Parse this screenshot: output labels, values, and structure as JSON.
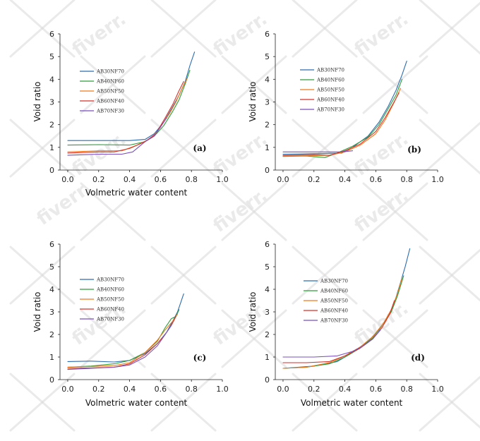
{
  "watermark": {
    "text": "fiverr."
  },
  "colors": {
    "AB30NF70": "#2b6cb0",
    "AB40NF60": "#2e9e3a",
    "AB50NF50": "#f07a1a",
    "AB60NF40": "#d6322b",
    "AB70NF30": "#7b4fbf"
  },
  "chart_data": [
    {
      "type": "line",
      "panel_label": "(a)",
      "xlabel": "Volmetric water content",
      "ylabel": "Void ratio",
      "xlim": [
        -0.05,
        1.0
      ],
      "ylim": [
        0,
        6
      ],
      "xticks": [
        "0.0",
        "0.2",
        "0.4",
        "0.6",
        "0.8",
        "1.0"
      ],
      "yticks": [
        "0",
        "1",
        "2",
        "3",
        "4",
        "5",
        "6"
      ],
      "legend_position": "top-left",
      "series": [
        {
          "name": "AB30NF70",
          "x": [
            0.0,
            0.2,
            0.4,
            0.5,
            0.56,
            0.62,
            0.68,
            0.72,
            0.76,
            0.79,
            0.82
          ],
          "y": [
            1.3,
            1.3,
            1.3,
            1.35,
            1.6,
            2.1,
            2.8,
            3.3,
            3.9,
            4.6,
            5.2
          ]
        },
        {
          "name": "AB40NF60",
          "x": [
            0.0,
            0.2,
            0.4,
            0.5,
            0.56,
            0.62,
            0.68,
            0.72,
            0.76,
            0.79
          ],
          "y": [
            1.1,
            1.12,
            1.1,
            1.25,
            1.5,
            1.95,
            2.6,
            3.1,
            3.8,
            4.4
          ]
        },
        {
          "name": "AB50NF50",
          "x": [
            0.0,
            0.2,
            0.35,
            0.45,
            0.55,
            0.6,
            0.66,
            0.7,
            0.74,
            0.77
          ],
          "y": [
            0.8,
            0.85,
            0.85,
            1.1,
            1.45,
            1.9,
            2.5,
            3.0,
            3.6,
            4.0
          ]
        },
        {
          "name": "AB60NF40",
          "x": [
            0.0,
            0.2,
            0.3,
            0.4,
            0.5,
            0.57,
            0.63,
            0.68,
            0.72,
            0.75
          ],
          "y": [
            0.75,
            0.8,
            0.8,
            0.95,
            1.25,
            1.6,
            2.3,
            2.9,
            3.5,
            3.9
          ]
        },
        {
          "name": "AB70NF30",
          "x": [
            0.0,
            0.2,
            0.35,
            0.42,
            0.5,
            0.56,
            0.6,
            0.64
          ],
          "y": [
            0.65,
            0.7,
            0.7,
            0.8,
            1.25,
            1.5,
            1.9,
            2.3
          ]
        }
      ]
    },
    {
      "type": "line",
      "panel_label": "(b)",
      "xlabel": "",
      "ylabel": "Void ratio",
      "xlim": [
        -0.05,
        1.0
      ],
      "ylim": [
        0,
        6
      ],
      "xticks": [
        "0.0",
        "0.2",
        "0.4",
        "0.6",
        "0.8",
        "1.0"
      ],
      "yticks": [
        "0",
        "1",
        "2",
        "3",
        "4",
        "5",
        "6"
      ],
      "legend_position": "top-left",
      "series": [
        {
          "name": "AB30NF70",
          "x": [
            0.0,
            0.2,
            0.38,
            0.45,
            0.55,
            0.62,
            0.68,
            0.73,
            0.77,
            0.8
          ],
          "y": [
            0.7,
            0.72,
            0.75,
            1.0,
            1.5,
            2.1,
            2.8,
            3.5,
            4.2,
            4.8
          ]
        },
        {
          "name": "AB40NF60",
          "x": [
            0.0,
            0.15,
            0.27,
            0.35,
            0.45,
            0.55,
            0.62,
            0.68,
            0.73,
            0.77
          ],
          "y": [
            0.6,
            0.62,
            0.55,
            0.75,
            1.05,
            1.45,
            2.0,
            2.7,
            3.3,
            4.0
          ]
        },
        {
          "name": "AB50NF50",
          "x": [
            0.0,
            0.15,
            0.3,
            0.4,
            0.5,
            0.6,
            0.66,
            0.72,
            0.76
          ],
          "y": [
            0.62,
            0.63,
            0.65,
            0.8,
            1.1,
            1.6,
            2.2,
            3.0,
            3.6
          ]
        },
        {
          "name": "AB60NF40",
          "x": [
            0.0,
            0.2,
            0.3,
            0.4,
            0.5,
            0.6,
            0.66,
            0.71,
            0.75
          ],
          "y": [
            0.65,
            0.68,
            0.65,
            0.85,
            1.15,
            1.7,
            2.3,
            2.9,
            3.4
          ]
        },
        {
          "name": "AB70NF30",
          "x": [
            0.0,
            0.2,
            0.38,
            0.45
          ],
          "y": [
            0.8,
            0.8,
            0.8,
            0.85
          ]
        }
      ]
    },
    {
      "type": "line",
      "panel_label": "(c)",
      "xlabel": "Volmetric water content",
      "ylabel": "Void ratio",
      "xlim": [
        -0.05,
        1.0
      ],
      "ylim": [
        0,
        6
      ],
      "xticks": [
        "0.0",
        "0.2",
        "0.4",
        "0.6",
        "0.8",
        "1.0"
      ],
      "yticks": [
        "0",
        "1",
        "2",
        "3",
        "4",
        "5",
        "6"
      ],
      "legend_position": "top-left",
      "series": [
        {
          "name": "AB30NF70",
          "x": [
            0.0,
            0.15,
            0.3,
            0.4,
            0.5,
            0.58,
            0.64,
            0.68,
            0.71,
            0.73,
            0.75
          ],
          "y": [
            0.8,
            0.82,
            0.78,
            0.85,
            1.15,
            1.6,
            2.1,
            2.6,
            3.0,
            3.4,
            3.8
          ]
        },
        {
          "name": "AB40NF60",
          "x": [
            0.0,
            0.15,
            0.3,
            0.4,
            0.5,
            0.58,
            0.63,
            0.67,
            0.7,
            0.72
          ],
          "y": [
            0.55,
            0.6,
            0.7,
            0.85,
            1.2,
            1.7,
            2.3,
            2.7,
            2.8,
            3.1
          ]
        },
        {
          "name": "AB50NF50",
          "x": [
            0.0,
            0.15,
            0.3,
            0.4,
            0.5,
            0.58,
            0.63,
            0.68,
            0.71
          ],
          "y": [
            0.55,
            0.58,
            0.62,
            0.75,
            1.2,
            1.75,
            2.2,
            2.6,
            2.9
          ]
        },
        {
          "name": "AB60NF40",
          "x": [
            0.0,
            0.15,
            0.3,
            0.4,
            0.5,
            0.58,
            0.63,
            0.67,
            0.7
          ],
          "y": [
            0.5,
            0.52,
            0.55,
            0.7,
            1.1,
            1.6,
            2.0,
            2.4,
            2.8
          ]
        },
        {
          "name": "AB70NF30",
          "x": [
            0.0,
            0.15,
            0.3,
            0.4,
            0.5,
            0.58,
            0.63,
            0.67
          ],
          "y": [
            0.45,
            0.5,
            0.55,
            0.65,
            1.0,
            1.5,
            2.0,
            2.4
          ]
        }
      ]
    },
    {
      "type": "line",
      "panel_label": "(d)",
      "xlabel": "Volmetric water content",
      "ylabel": "Void ratio",
      "xlim": [
        -0.05,
        1.0
      ],
      "ylim": [
        0,
        6
      ],
      "xticks": [
        "0.0",
        "0.2",
        "0.4",
        "0.6",
        "0.8",
        "1.0"
      ],
      "yticks": [
        "0",
        "1",
        "2",
        "3",
        "4",
        "5",
        "6"
      ],
      "legend_position": "top-left",
      "series": [
        {
          "name": "AB30NF70",
          "x": [
            0.0,
            0.2,
            0.35,
            0.45,
            0.55,
            0.62,
            0.68,
            0.72,
            0.76,
            0.79,
            0.82
          ],
          "y": [
            0.5,
            0.6,
            0.8,
            1.2,
            1.7,
            2.2,
            2.8,
            3.4,
            4.3,
            5.0,
            5.8
          ]
        },
        {
          "name": "AB40NF60",
          "x": [
            0.0,
            0.15,
            0.3,
            0.4,
            0.5,
            0.58,
            0.64,
            0.7,
            0.74,
            0.78
          ],
          "y": [
            0.5,
            0.55,
            0.7,
            1.0,
            1.4,
            1.85,
            2.4,
            3.0,
            3.7,
            4.6
          ]
        },
        {
          "name": "AB50NF50",
          "x": [
            0.0,
            0.15,
            0.3,
            0.4,
            0.5,
            0.58,
            0.65,
            0.7,
            0.74,
            0.77
          ],
          "y": [
            0.5,
            0.55,
            0.75,
            1.05,
            1.45,
            1.9,
            2.5,
            3.1,
            3.8,
            4.5
          ]
        },
        {
          "name": "AB60NF40",
          "x": [
            0.0,
            0.15,
            0.3,
            0.4,
            0.5,
            0.58,
            0.64,
            0.69,
            0.72
          ],
          "y": [
            0.75,
            0.75,
            0.8,
            1.05,
            1.4,
            1.8,
            2.3,
            2.9,
            3.5
          ]
        },
        {
          "name": "AB70NF30",
          "x": [
            0.0,
            0.2,
            0.35,
            0.45,
            0.52,
            0.58,
            0.63
          ],
          "y": [
            1.0,
            1.0,
            1.05,
            1.25,
            1.5,
            1.8,
            2.2
          ]
        }
      ]
    }
  ]
}
